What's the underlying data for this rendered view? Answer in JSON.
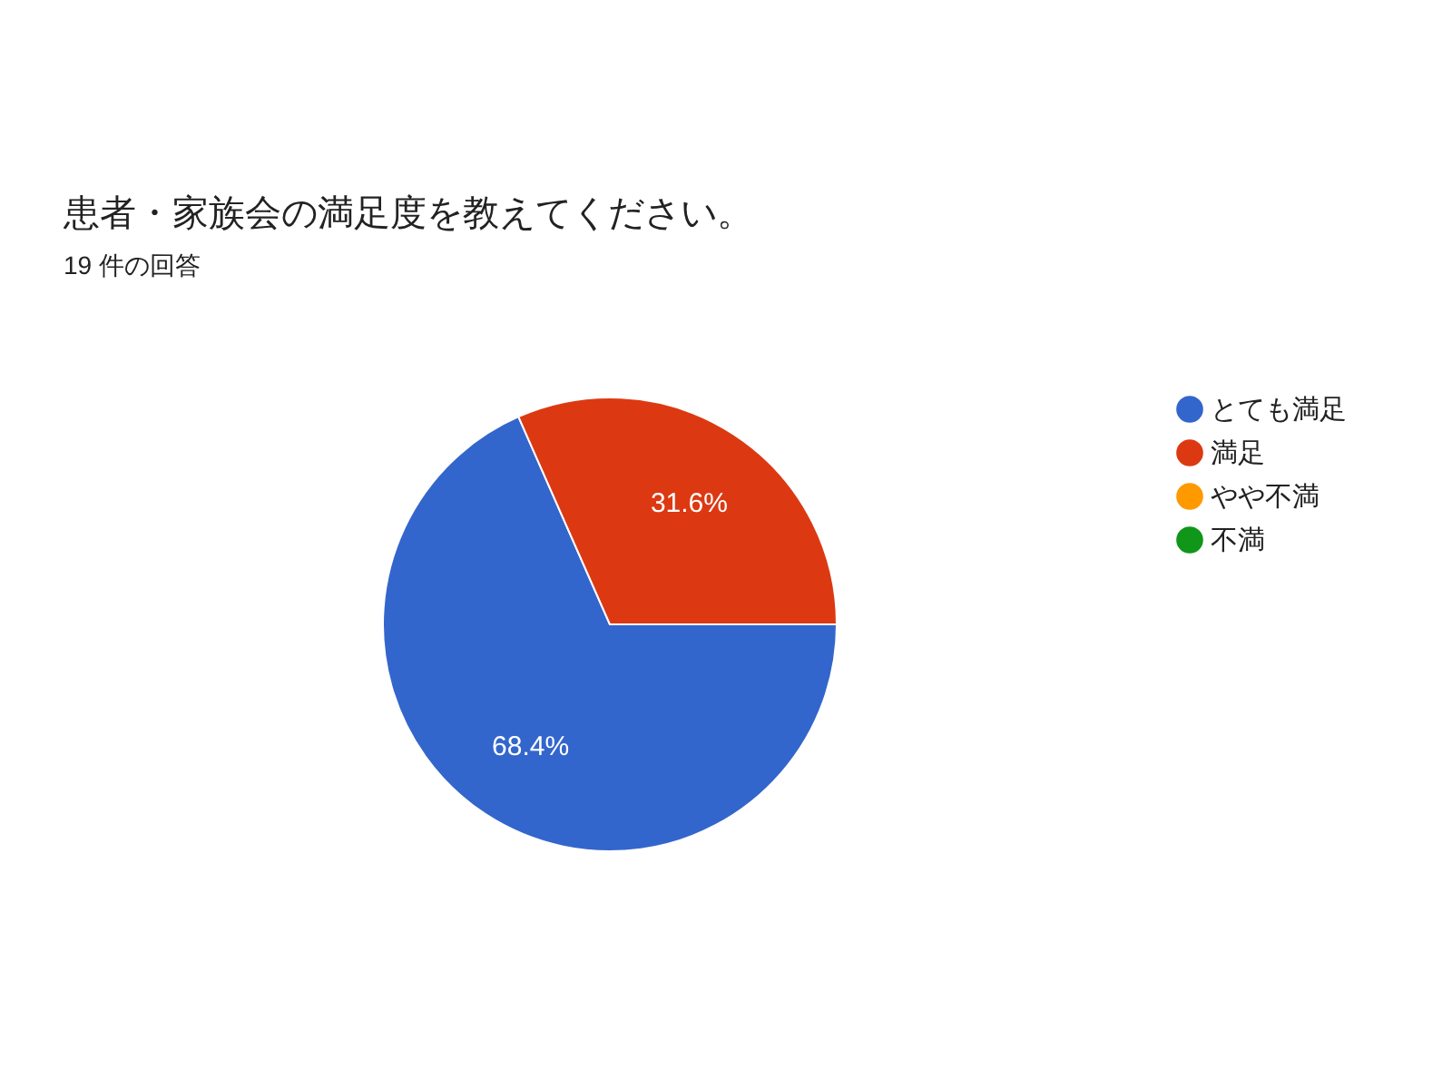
{
  "chart_data": {
    "type": "pie",
    "title": "患者・家族会の満足度を教えてください。",
    "subtitle": "19 件の回答",
    "categories": [
      "とても満足",
      "満足",
      "やや不満",
      "不満"
    ],
    "values": [
      68.4,
      31.6,
      0,
      0
    ],
    "colors": [
      "#3366cc",
      "#dc3912",
      "#ff9900",
      "#109618"
    ],
    "value_labels": [
      "68.4%",
      "31.6%",
      null,
      null
    ],
    "legend": "top right"
  }
}
